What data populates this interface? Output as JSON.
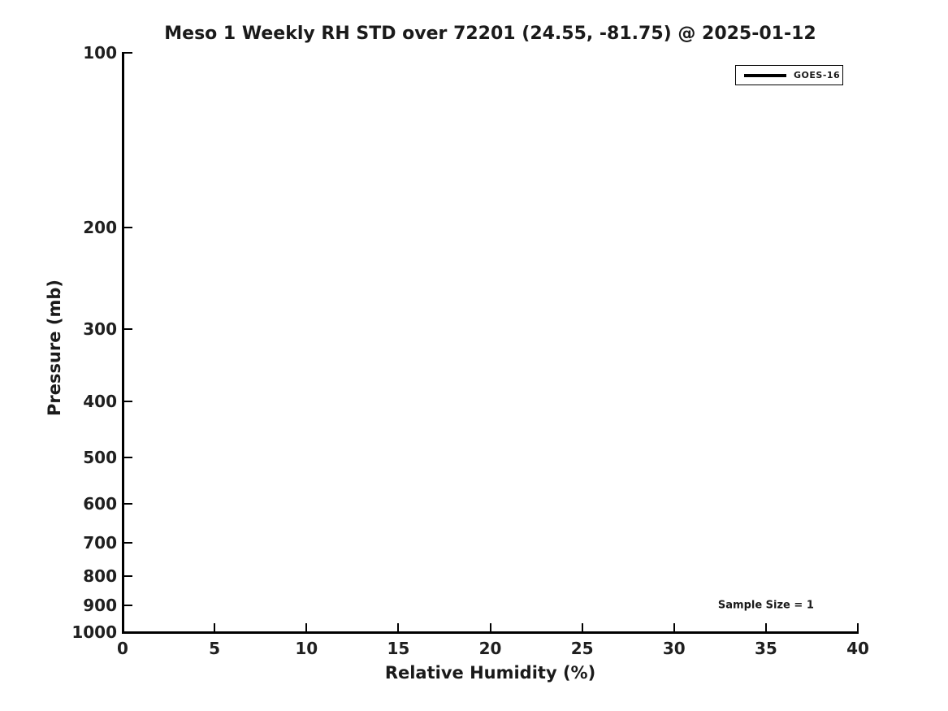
{
  "figure": {
    "background": "#ffffff",
    "text_color": "#1a1a1a",
    "axis_color": "#000000"
  },
  "chart_data": {
    "type": "line",
    "title": "Meso 1 Weekly RH STD over 72201 (24.55, -81.75) @ 2025-01-12",
    "xlabel": "Relative Humidity (%)",
    "ylabel": "Pressure (mb)",
    "xlim": [
      0,
      40
    ],
    "ylim": [
      100,
      1000
    ],
    "yscale": "log",
    "y_inverted": true,
    "x_ticks": [
      0,
      5,
      10,
      15,
      20,
      25,
      30,
      35,
      40
    ],
    "y_ticks": [
      100,
      200,
      300,
      400,
      500,
      600,
      700,
      800,
      900,
      1000
    ],
    "grid": false,
    "spines": [
      "left",
      "bottom"
    ],
    "legend": {
      "position": "upper right",
      "entries": [
        {
          "label": "GOES-16",
          "color": "#000000"
        }
      ]
    },
    "series": [
      {
        "name": "GOES-16",
        "color": "#000000",
        "x": [],
        "y": []
      }
    ],
    "annotations": [
      {
        "text": "Sample Size = 1",
        "x": 35,
        "y": 900
      }
    ]
  }
}
